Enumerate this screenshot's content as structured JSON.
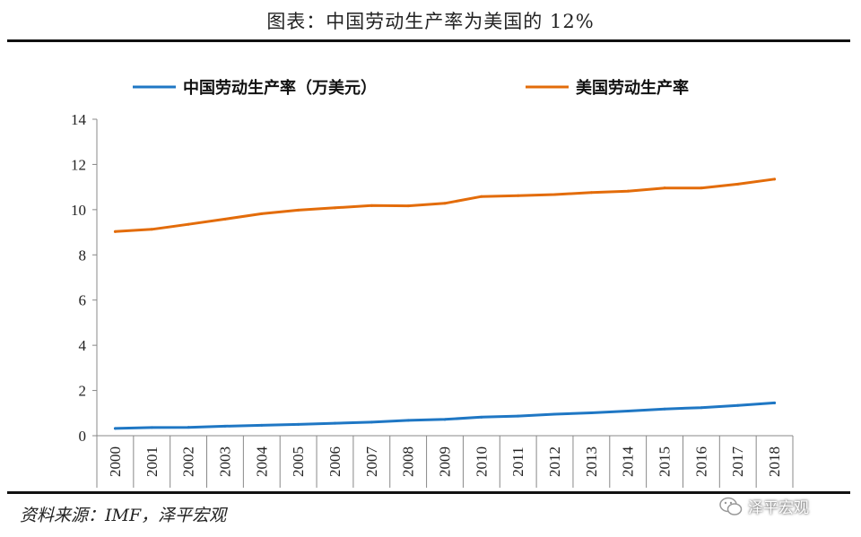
{
  "header": {
    "title": "图表：中国劳动生产率为美国的 12%"
  },
  "footer": {
    "source": "资料来源：IMF，泽平宏观",
    "watermark": "泽平宏观"
  },
  "chart_data": {
    "type": "line",
    "title": "图表：中国劳动生产率为美国的 12%",
    "xlabel": "",
    "ylabel": "",
    "ylim": [
      0,
      14
    ],
    "yticks": [
      0,
      2,
      4,
      6,
      8,
      10,
      12,
      14
    ],
    "x": [
      "2000",
      "2001",
      "2002",
      "2003",
      "2004",
      "2005",
      "2006",
      "2007",
      "2008",
      "2009",
      "2010",
      "2011",
      "2012",
      "2013",
      "2014",
      "2015",
      "2016",
      "2017",
      "2018"
    ],
    "grid": false,
    "legend_position": "top",
    "series": [
      {
        "name": "中国劳动生产率（万美元）",
        "color": "#1f77c4",
        "values": [
          0.32,
          0.36,
          0.37,
          0.42,
          0.46,
          0.5,
          0.55,
          0.6,
          0.68,
          0.72,
          0.82,
          0.87,
          0.95,
          1.01,
          1.09,
          1.18,
          1.24,
          1.34,
          1.45
        ]
      },
      {
        "name": "美国劳动生产率",
        "color": "#e36c0a",
        "values": [
          9.03,
          9.13,
          9.35,
          9.58,
          9.82,
          9.98,
          10.08,
          10.18,
          10.17,
          10.28,
          10.58,
          10.62,
          10.67,
          10.76,
          10.82,
          10.96,
          10.96,
          11.13,
          11.35
        ]
      }
    ]
  }
}
